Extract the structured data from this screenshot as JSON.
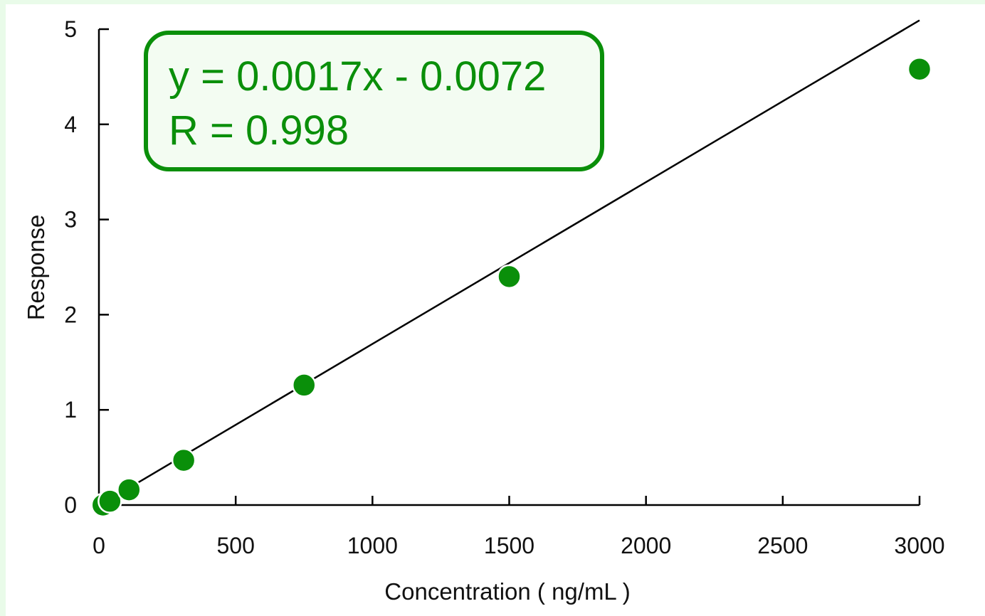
{
  "chart_data": {
    "type": "scatter",
    "title": "",
    "xlabel": "Concentration ( ng/mL )",
    "ylabel": "Response",
    "xlim": [
      0,
      3000
    ],
    "ylim": [
      0,
      5
    ],
    "x_ticks": [
      "0",
      "500",
      "1000",
      "1500",
      "2000",
      "2500",
      "3000"
    ],
    "y_ticks": [
      "0",
      "1",
      "2",
      "3",
      "4",
      "5"
    ],
    "grid": false,
    "series": [
      {
        "color": "#0a8f0a",
        "points": [
          {
            "x": 15,
            "y": 0.0
          },
          {
            "x": 40,
            "y": 0.04
          },
          {
            "x": 110,
            "y": 0.16
          },
          {
            "x": 310,
            "y": 0.47
          },
          {
            "x": 750,
            "y": 1.26
          },
          {
            "x": 1500,
            "y": 2.4
          },
          {
            "x": 3000,
            "y": 4.58
          }
        ]
      }
    ],
    "fit_line": {
      "slope": 0.0017,
      "intercept": -0.0072,
      "x_start": 15,
      "x_end": 3000,
      "color": "#000000"
    },
    "annotation": {
      "equation": "y = 0.0017x - 0.0072",
      "r_value": "R = 0.998",
      "text_color": "#0a8f0a",
      "border_color": "#0a8f0a",
      "fill_color": "#f3fcf2"
    }
  }
}
